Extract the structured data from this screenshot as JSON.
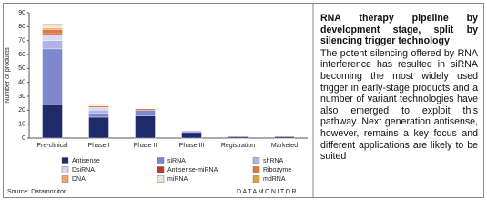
{
  "chart_data": {
    "type": "stacked-bar",
    "y_label": "Number of products",
    "categories": [
      "Pre-clinical",
      "Phase I",
      "Phase II",
      "Phase III",
      "Registration",
      "Marketed"
    ],
    "series": [
      {
        "name": "Antisense",
        "color": "#1f2a6b",
        "values": [
          24,
          15,
          16,
          4,
          1,
          1
        ]
      },
      {
        "name": "siRNA",
        "color": "#7f88cf",
        "values": [
          40,
          3,
          4,
          1,
          0,
          0
        ]
      },
      {
        "name": "shRNA",
        "color": "#aeb5e6",
        "values": [
          6,
          2,
          0,
          0,
          0,
          0
        ]
      },
      {
        "name": "DsiRNA",
        "color": "#d6d9ef",
        "values": [
          4,
          2,
          0,
          0,
          0,
          0
        ]
      },
      {
        "name": "Antisense-miRNA",
        "color": "#c0392b",
        "values": [
          1,
          0,
          0,
          0,
          0,
          0
        ]
      },
      {
        "name": "Ribozyme",
        "color": "#e0783a",
        "values": [
          3,
          1,
          1,
          0,
          0,
          0
        ]
      },
      {
        "name": "DNAi",
        "color": "#f2a66a",
        "values": [
          1,
          0,
          0,
          0,
          0,
          0
        ]
      },
      {
        "name": "miRNA",
        "color": "#f3e3d3",
        "values": [
          2,
          1,
          0,
          0,
          0,
          0
        ]
      },
      {
        "name": "mdRNA",
        "color": "#d9a43a",
        "values": [
          1,
          0,
          0,
          0,
          0,
          0
        ]
      }
    ],
    "ylim": [
      0,
      90
    ],
    "yticks": [
      0,
      10,
      20,
      30,
      40,
      50,
      60,
      70,
      80,
      90
    ],
    "source": "Source: Datamonitor",
    "brand": "DATAMONITOR"
  },
  "panel": {
    "title": "RNA therapy pipeline by development stage, split by silencing trigger technology",
    "body": "The potent silencing offered by RNA interference has resulted in siRNA becoming the most widely used trigger in early-stage products and a number of variant technologies have also emerged to exploit this pathway. Next generation antisense, however, remains a key focus and different applications are likely to be suited"
  }
}
